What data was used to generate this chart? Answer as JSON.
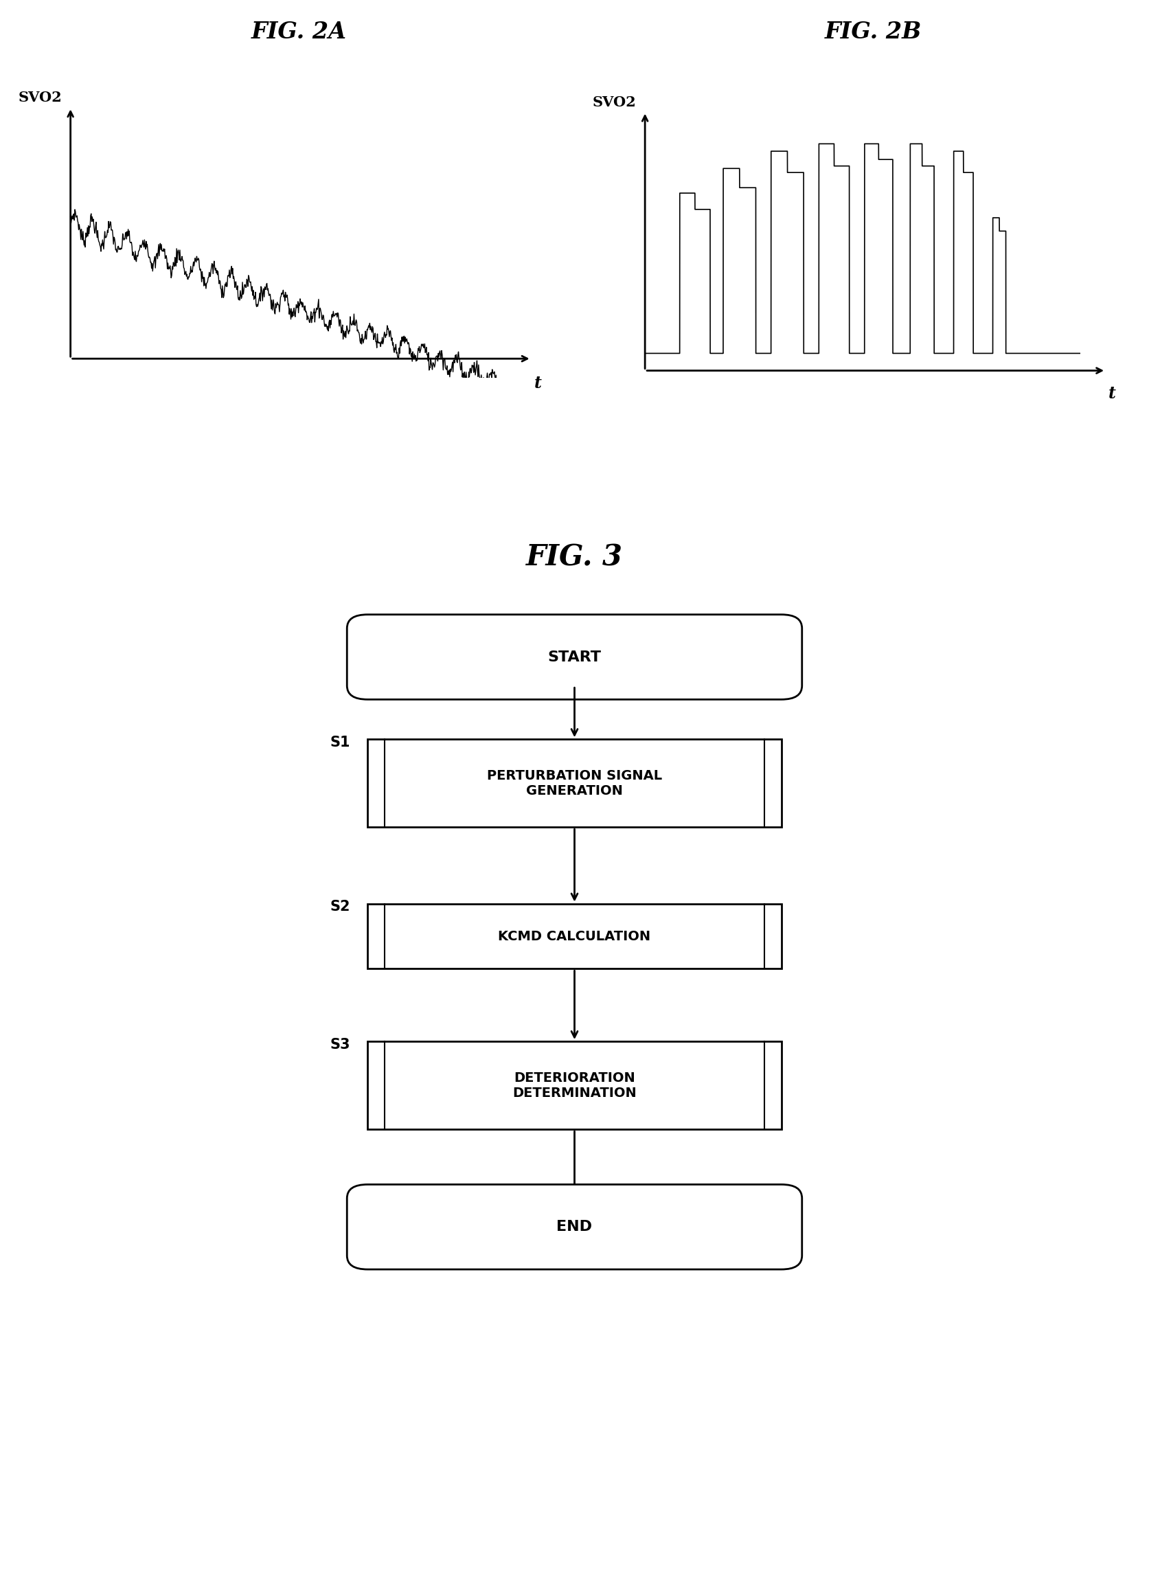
{
  "fig2a_title": "FIG. 2A",
  "fig2b_title": "FIG. 2B",
  "fig3_title": "FIG. 3",
  "ylabel": "SVO2",
  "xlabel": "t",
  "bg_color": "#ffffff",
  "line_color": "#000000",
  "flowchart": {
    "start_label": "START",
    "end_label": "END",
    "steps": [
      {
        "label": "PERTURBATION SIGNAL\nGENERATION",
        "tag": "S1"
      },
      {
        "label": "KCMD CALCULATION",
        "tag": "S2"
      },
      {
        "label": "DETERIORATION\nDETERMINATION",
        "tag": "S3"
      }
    ]
  }
}
